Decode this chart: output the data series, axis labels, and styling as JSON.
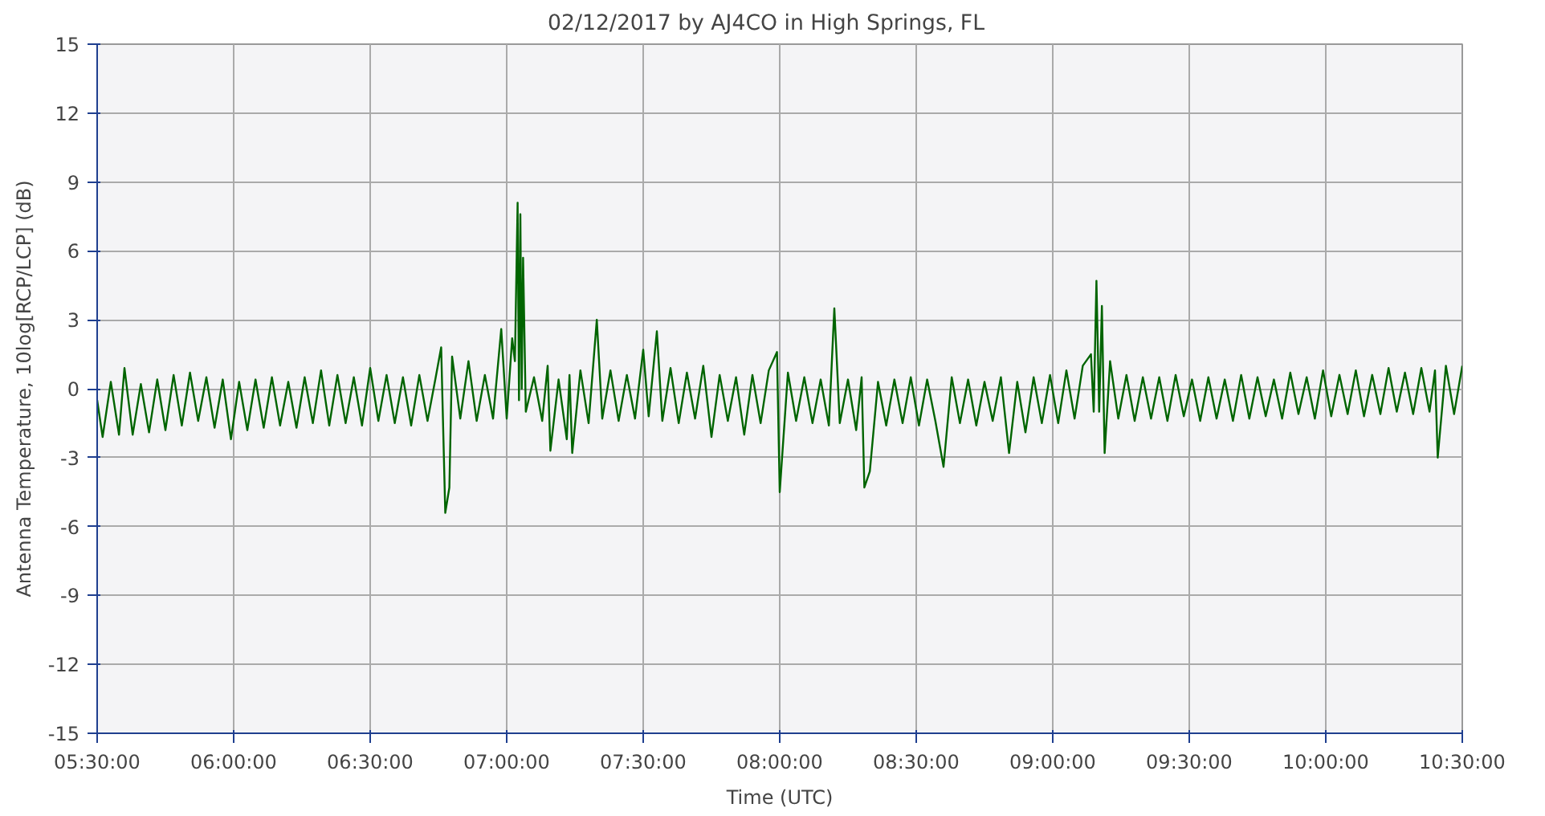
{
  "chart_data": {
    "type": "line",
    "title": "02/12/2017  by  AJ4CO  in  High Springs, FL",
    "xlabel": "Time (UTC)",
    "ylabel": "Antenna Temperature, 10log[RCP/LCP] (dB)",
    "xlim": [
      5.5,
      10.5
    ],
    "ylim": [
      -15,
      15
    ],
    "xticks": [
      {
        "value": 5.5,
        "label": "05:30:00"
      },
      {
        "value": 6,
        "label": "06:00:00"
      },
      {
        "value": 6.5,
        "label": "06:30:00"
      },
      {
        "value": 7,
        "label": "07:00:00"
      },
      {
        "value": 7.5,
        "label": "07:30:00"
      },
      {
        "value": 8,
        "label": "08:00:00"
      },
      {
        "value": 8.5,
        "label": "08:30:00"
      },
      {
        "value": 9,
        "label": "09:00:00"
      },
      {
        "value": 9.5,
        "label": "09:30:00"
      },
      {
        "value": 10,
        "label": "10:00:00"
      },
      {
        "value": 10.5,
        "label": "10:30:00"
      }
    ],
    "yticks": [
      -15,
      -12,
      -9,
      -6,
      -3,
      0,
      3,
      6,
      9,
      12,
      15
    ],
    "grid": true,
    "marker": "none",
    "line_style": "solid",
    "series": [
      {
        "color": "#006400",
        "x": [
          5.5,
          5.52,
          5.55,
          5.58,
          5.6,
          5.63,
          5.66,
          5.69,
          5.72,
          5.75,
          5.78,
          5.81,
          5.84,
          5.87,
          5.9,
          5.93,
          5.96,
          5.99,
          6.02,
          6.05,
          6.08,
          6.11,
          6.14,
          6.17,
          6.2,
          6.23,
          6.26,
          6.29,
          6.32,
          6.35,
          6.38,
          6.41,
          6.44,
          6.47,
          6.5,
          6.53,
          6.56,
          6.59,
          6.62,
          6.65,
          6.68,
          6.71,
          6.74,
          6.76,
          6.775,
          6.79,
          6.8,
          6.83,
          6.86,
          6.89,
          6.92,
          6.95,
          6.98,
          7.0,
          7.02,
          7.03,
          7.04,
          7.045,
          7.05,
          7.055,
          7.06,
          7.07,
          7.1,
          7.13,
          7.15,
          7.16,
          7.19,
          7.22,
          7.23,
          7.24,
          7.27,
          7.3,
          7.33,
          7.35,
          7.38,
          7.41,
          7.44,
          7.47,
          7.5,
          7.52,
          7.55,
          7.57,
          7.6,
          7.63,
          7.66,
          7.69,
          7.72,
          7.75,
          7.78,
          7.81,
          7.84,
          7.87,
          7.9,
          7.93,
          7.96,
          7.99,
          8.0,
          8.03,
          8.06,
          8.09,
          8.12,
          8.15,
          8.18,
          8.2,
          8.22,
          8.25,
          8.28,
          8.3,
          8.31,
          8.33,
          8.36,
          8.39,
          8.42,
          8.45,
          8.48,
          8.51,
          8.54,
          8.57,
          8.6,
          8.63,
          8.66,
          8.69,
          8.72,
          8.75,
          8.78,
          8.81,
          8.84,
          8.87,
          8.9,
          8.93,
          8.96,
          8.99,
          9.02,
          9.05,
          9.08,
          9.11,
          9.14,
          9.15,
          9.16,
          9.17,
          9.18,
          9.19,
          9.21,
          9.24,
          9.27,
          9.3,
          9.33,
          9.36,
          9.39,
          9.42,
          9.45,
          9.48,
          9.51,
          9.54,
          9.57,
          9.6,
          9.63,
          9.66,
          9.69,
          9.72,
          9.75,
          9.78,
          9.81,
          9.84,
          9.87,
          9.9,
          9.93,
          9.96,
          9.99,
          10.02,
          10.05,
          10.08,
          10.11,
          10.14,
          10.17,
          10.2,
          10.23,
          10.26,
          10.29,
          10.32,
          10.35,
          10.38,
          10.4,
          10.41,
          10.44,
          10.47,
          10.5
        ],
        "values": [
          -0.5,
          -2.1,
          0.3,
          -2.0,
          0.9,
          -2.0,
          0.2,
          -1.9,
          0.4,
          -1.8,
          0.6,
          -1.6,
          0.7,
          -1.4,
          0.5,
          -1.7,
          0.4,
          -2.2,
          0.3,
          -1.8,
          0.4,
          -1.7,
          0.5,
          -1.6,
          0.3,
          -1.7,
          0.5,
          -1.5,
          0.8,
          -1.6,
          0.6,
          -1.5,
          0.5,
          -1.6,
          0.9,
          -1.4,
          0.6,
          -1.5,
          0.5,
          -1.6,
          0.6,
          -1.4,
          0.5,
          1.8,
          -5.4,
          -4.3,
          1.4,
          -1.3,
          1.2,
          -1.4,
          0.6,
          -1.3,
          2.6,
          -1.3,
          2.2,
          1.2,
          8.1,
          -0.5,
          7.6,
          0.0,
          5.7,
          -1.0,
          0.5,
          -1.4,
          1.0,
          -2.7,
          0.4,
          -2.2,
          0.6,
          -2.8,
          0.8,
          -1.5,
          3.0,
          -1.3,
          0.8,
          -1.4,
          0.6,
          -1.3,
          1.7,
          -1.2,
          2.5,
          -1.4,
          0.9,
          -1.5,
          0.7,
          -1.3,
          1.0,
          -2.1,
          0.6,
          -1.4,
          0.5,
          -2.0,
          0.6,
          -1.5,
          0.8,
          1.6,
          -4.5,
          0.7,
          -1.4,
          0.5,
          -1.5,
          0.4,
          -1.6,
          3.5,
          -1.5,
          0.4,
          -1.8,
          0.5,
          -4.3,
          -3.6,
          0.3,
          -1.6,
          0.4,
          -1.5,
          0.5,
          -1.6,
          0.4,
          -1.4,
          -3.4,
          0.5,
          -1.5,
          0.4,
          -1.6,
          0.3,
          -1.4,
          0.5,
          -2.8,
          0.3,
          -1.9,
          0.5,
          -1.5,
          0.6,
          -1.5,
          0.8,
          -1.3,
          1.0,
          1.5,
          -1.0,
          4.7,
          -1.0,
          3.6,
          -2.8,
          1.2,
          -1.3,
          0.6,
          -1.4,
          0.5,
          -1.3,
          0.5,
          -1.4,
          0.6,
          -1.2,
          0.4,
          -1.4,
          0.5,
          -1.3,
          0.4,
          -1.4,
          0.6,
          -1.3,
          0.5,
          -1.2,
          0.4,
          -1.3,
          0.7,
          -1.1,
          0.5,
          -1.3,
          0.8,
          -1.2,
          0.6,
          -1.1,
          0.8,
          -1.2,
          0.6,
          -1.1,
          0.9,
          -1.0,
          0.7,
          -1.1,
          0.9,
          -1.0,
          0.8,
          -3.0,
          1.0,
          -1.1,
          1.0
        ]
      }
    ]
  }
}
